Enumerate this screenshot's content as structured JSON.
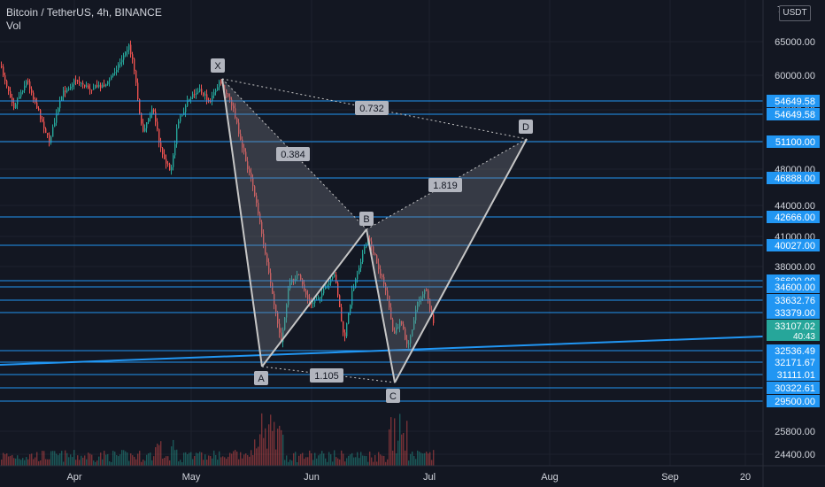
{
  "header": {
    "symbol_line": "Bitcoin / TetherUS, 4h, BINANCE",
    "volume_label": "Vol",
    "currency_button": "USDT",
    "top_tick_fragment": "7"
  },
  "colors": {
    "background": "#131722",
    "grid": "#1e222d",
    "axis_text": "#d1d4dc",
    "up": "#26a69a",
    "down": "#ef5350",
    "level_line": "#2196f3",
    "pattern_fill": "#787b86",
    "pattern_stroke": "#c6c6c6",
    "last_price_bg": "#26a69a"
  },
  "price_axis_ticks": [
    "65000.00",
    "60000.00",
    "56000.00",
    "52000.00",
    "48000.00",
    "44000.00",
    "41000.00",
    "38000.00",
    "25800.00",
    "24400.00"
  ],
  "time_axis_labels": [
    "Apr",
    "May",
    "Jun",
    "Jul",
    "Aug",
    "Sep",
    "20"
  ],
  "level_badges": [
    {
      "label": "54649.58"
    },
    {
      "label": "54649.58"
    },
    {
      "label": "51100.00"
    },
    {
      "label": "46888.00"
    },
    {
      "label": "42666.00"
    },
    {
      "label": "40027.00"
    },
    {
      "label": "36690.00"
    },
    {
      "label": "34600.00"
    },
    {
      "label": "33632.76"
    },
    {
      "label": "33379.00"
    },
    {
      "label": "32536.49"
    },
    {
      "label": "32171.67"
    },
    {
      "label": "31111.01"
    },
    {
      "label": "30322.61"
    },
    {
      "label": "29500.00"
    }
  ],
  "last_price": {
    "price": "33107.02",
    "countdown": "40:43"
  },
  "pattern": {
    "points": [
      "X",
      "A",
      "B",
      "C",
      "D"
    ],
    "ratios": [
      "0.384",
      "1.819",
      "1.105",
      "0.732"
    ]
  }
}
